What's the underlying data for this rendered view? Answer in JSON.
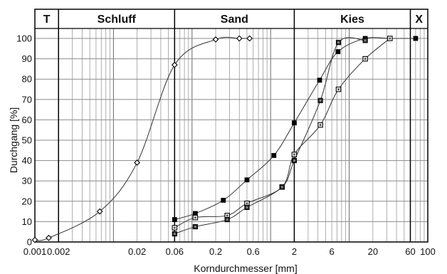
{
  "chart_data": {
    "type": "line",
    "title": "",
    "xlabel": "Korndurchmesser [mm]",
    "ylabel": "Durchgang [%]",
    "x_scale": "log",
    "xlim": [
      0.001,
      100
    ],
    "ylim": [
      0,
      100
    ],
    "grid": true,
    "x_tick_labels": [
      {
        "value": 0.001,
        "label": "0.001"
      },
      {
        "value": 0.002,
        "label": "0.002"
      },
      {
        "value": 0.02,
        "label": "0.02"
      },
      {
        "value": 0.06,
        "label": "0.06"
      },
      {
        "value": 0.2,
        "label": "0.2"
      },
      {
        "value": 0.6,
        "label": "0.6"
      },
      {
        "value": 2,
        "label": "2"
      },
      {
        "value": 6,
        "label": "6"
      },
      {
        "value": 20,
        "label": "20"
      },
      {
        "value": 60,
        "label": "60"
      },
      {
        "value": 100,
        "label": "100"
      }
    ],
    "y_tick_labels": [
      "0",
      "10",
      "20",
      "30",
      "40",
      "50",
      "60",
      "70",
      "80",
      "90",
      "100"
    ],
    "bands": [
      {
        "label": "T",
        "from": 0.001,
        "to": 0.002
      },
      {
        "label": "Schluff",
        "from": 0.002,
        "to": 0.06
      },
      {
        "label": "Sand",
        "from": 0.06,
        "to": 2
      },
      {
        "label": "Kies",
        "from": 2,
        "to": 60
      },
      {
        "label": "X",
        "from": 60,
        "to": 100
      }
    ],
    "series": [
      {
        "marker": "diamond",
        "points": [
          [
            0.001,
            1
          ],
          [
            0.0015,
            2
          ],
          [
            0.0067,
            15
          ],
          [
            0.02,
            39
          ],
          [
            0.06,
            87
          ],
          [
            0.2,
            99.5
          ],
          [
            0.4,
            100
          ],
          [
            0.54,
            100
          ]
        ]
      },
      {
        "marker": "filled-square",
        "points": [
          [
            0.06,
            11
          ],
          [
            0.11,
            14
          ],
          [
            0.25,
            20.5
          ],
          [
            0.5,
            30.5
          ],
          [
            1.1,
            42.5
          ],
          [
            2.0,
            58.5
          ],
          [
            4.2,
            79.5
          ],
          [
            7.2,
            93.5
          ],
          [
            16,
            100
          ],
          [
            33,
            100
          ],
          [
            70,
            100
          ]
        ]
      },
      {
        "marker": "hollow-square",
        "points": [
          [
            0.06,
            7
          ],
          [
            0.11,
            12
          ],
          [
            0.28,
            13
          ],
          [
            0.5,
            19
          ],
          [
            1.4,
            27
          ],
          [
            2.0,
            43
          ],
          [
            4.3,
            57.5
          ],
          [
            7.3,
            75
          ],
          [
            16,
            90
          ],
          [
            33,
            100
          ]
        ]
      },
      {
        "marker": "filled-square-small",
        "points": [
          [
            0.06,
            4
          ],
          [
            0.11,
            7.5
          ],
          [
            0.28,
            11
          ],
          [
            0.5,
            17
          ],
          [
            1.4,
            27
          ],
          [
            2.0,
            40
          ],
          [
            4.3,
            69.5
          ],
          [
            7.3,
            98
          ],
          [
            16,
            99
          ]
        ]
      }
    ]
  }
}
